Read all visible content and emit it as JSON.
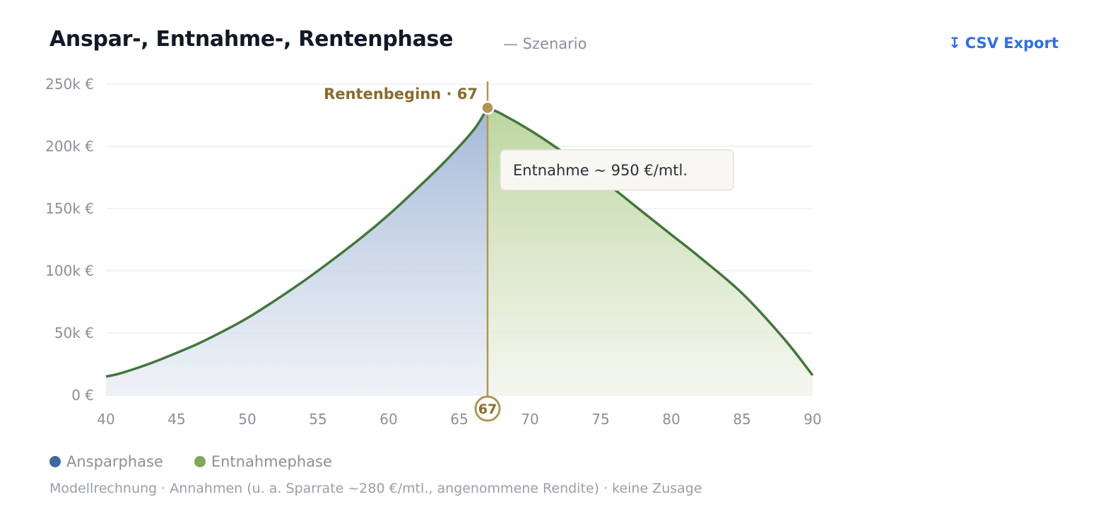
{
  "header": {
    "title": "Anspar-, Entnahme-, Rentenphase",
    "subtitle": "— Szenario",
    "export_label": "CSV Export",
    "export_icon": "download-arrow-icon"
  },
  "colors": {
    "accumulation_line": "#42763b",
    "accumulation_fill": "#9db4d5",
    "withdrawal_fill": "#b9d39a",
    "marker": "#b39456",
    "marker_text": "#8a6a2e",
    "grid": "#eceef1",
    "axis_text": "#8b8f99",
    "legend_blue": "#3b69a0",
    "legend_green": "#7ea85a"
  },
  "chart_data": {
    "type": "area",
    "title": "Anspar-, Entnahme-, Rentenphase",
    "xlabel": "",
    "ylabel": "",
    "xlim": [
      40,
      90
    ],
    "ylim": [
      0,
      250000
    ],
    "x_ticks": [
      40,
      45,
      50,
      55,
      60,
      65,
      70,
      75,
      80,
      85,
      90
    ],
    "y_ticks": [
      0,
      50000,
      100000,
      150000,
      200000,
      250000
    ],
    "y_tick_labels": [
      "0 €",
      "50k €",
      "100k €",
      "150k €",
      "200k €",
      "250k €"
    ],
    "grid": true,
    "legend_position": "bottom-left",
    "series": [
      {
        "name": "Ansparphase",
        "x": [
          40,
          41,
          43,
          45,
          47,
          50,
          53,
          55,
          58,
          60,
          62,
          64,
          66,
          67
        ],
        "y": [
          15000,
          17500,
          25000,
          34000,
          44000,
          62000,
          84000,
          100000,
          126000,
          145000,
          166000,
          188000,
          213000,
          231000
        ]
      },
      {
        "name": "Entnahmephase",
        "x": [
          67,
          68,
          70,
          72,
          75,
          78,
          80,
          82,
          85,
          88,
          90
        ],
        "y": [
          231000,
          226000,
          213000,
          198000,
          174000,
          147000,
          129000,
          111000,
          82000,
          45000,
          16000
        ]
      }
    ],
    "annotations": {
      "retirement_age": 67,
      "retirement_label": "Rentenbeginn · 67",
      "retirement_badge": "67",
      "tooltip_text": "Entnahme ~ 950 €/mtl."
    }
  },
  "legend": [
    {
      "label": "Ansparphase"
    },
    {
      "label": "Entnahmephase"
    }
  ],
  "footnote": "Modellrechnung · Annahmen (u. a. Sparrate ~280 €/mtl., angenommene Rendite) · keine Zusage"
}
